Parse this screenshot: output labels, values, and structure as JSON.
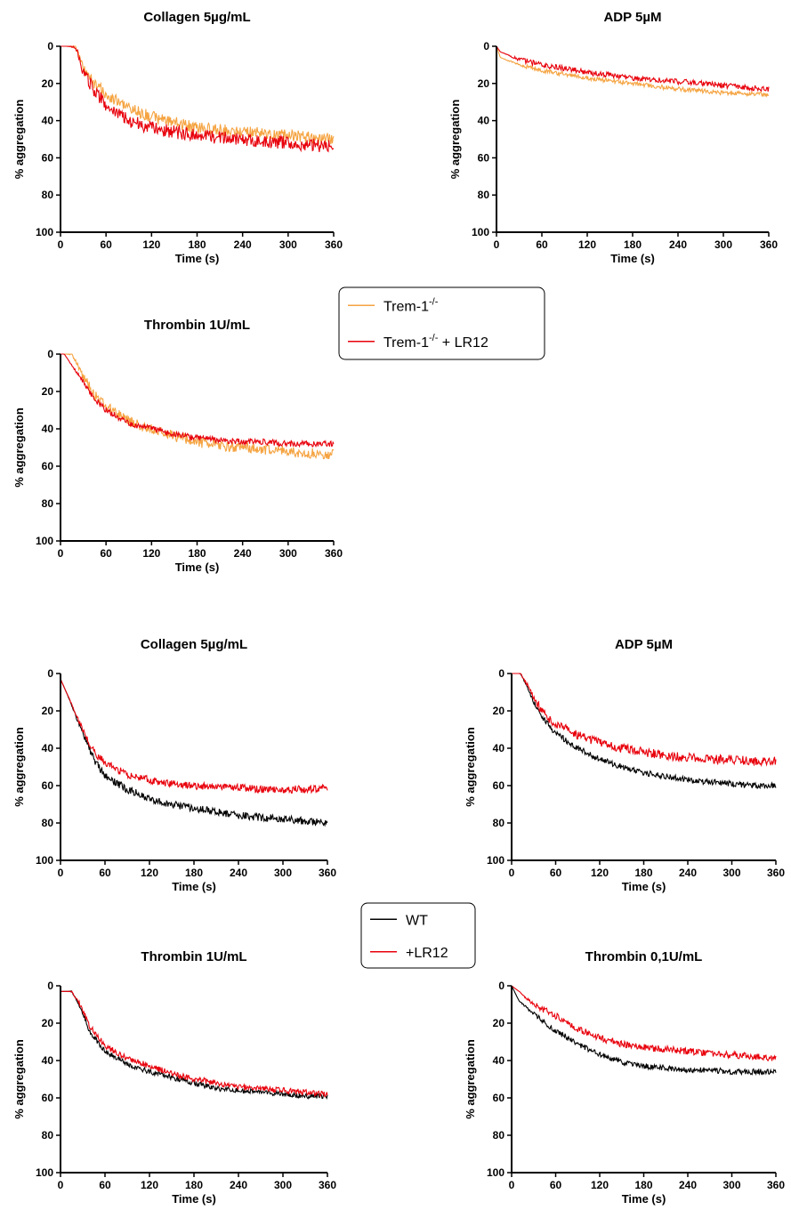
{
  "figure": {
    "legends": [
      {
        "entries": [
          {
            "label": "Trem-1",
            "sup": "-/-",
            "suffix": "",
            "color": "#f5a340"
          },
          {
            "label": "Trem-1",
            "sup": "-/-",
            "suffix": " + LR12",
            "color": "#e8000b"
          }
        ]
      },
      {
        "entries": [
          {
            "label": "WT",
            "sup": "",
            "suffix": "",
            "color": "#000000"
          },
          {
            "label": "+LR12",
            "sup": "",
            "suffix": "",
            "color": "#e8000b"
          }
        ]
      }
    ]
  },
  "chart_data": [
    {
      "type": "line",
      "title": "Collagen 5µg/mL",
      "xlabel": "Time (s)",
      "ylabel": "% aggregation",
      "xlim": [
        0,
        360
      ],
      "ylim": [
        0,
        100
      ],
      "y_inverted": true,
      "xticks": [
        0,
        60,
        120,
        180,
        240,
        300,
        360
      ],
      "yticks": [
        0,
        20,
        40,
        60,
        80,
        100
      ],
      "series": [
        {
          "name": "Trem-1-/-",
          "color": "#f5a340",
          "x": [
            0,
            20,
            30,
            45,
            60,
            90,
            120,
            150,
            180,
            210,
            240,
            270,
            300,
            330,
            360
          ],
          "y": [
            0,
            0,
            12,
            20,
            26,
            33,
            38,
            41,
            44,
            45,
            46,
            47,
            48,
            49,
            50
          ]
        },
        {
          "name": "Trem-1-/- + LR12",
          "color": "#e8000b",
          "x": [
            0,
            20,
            30,
            45,
            60,
            90,
            120,
            150,
            180,
            210,
            240,
            270,
            300,
            330,
            360
          ],
          "y": [
            0,
            0,
            14,
            24,
            32,
            40,
            44,
            46,
            48,
            49,
            50,
            51,
            52,
            53,
            54
          ]
        }
      ]
    },
    {
      "type": "line",
      "title": "ADP 5µM",
      "xlabel": "Time (s)",
      "ylabel": "% aggregation",
      "xlim": [
        0,
        360
      ],
      "ylim": [
        0,
        100
      ],
      "y_inverted": true,
      "xticks": [
        0,
        60,
        120,
        180,
        240,
        300,
        360
      ],
      "yticks": [
        0,
        20,
        40,
        60,
        80,
        100
      ],
      "series": [
        {
          "name": "Trem-1-/-",
          "color": "#f5a340",
          "x": [
            0,
            5,
            30,
            60,
            90,
            120,
            180,
            240,
            300,
            360
          ],
          "y": [
            0,
            6,
            10,
            13,
            15,
            17,
            20,
            23,
            25,
            26
          ]
        },
        {
          "name": "Trem-1-/- + LR12",
          "color": "#e8000b",
          "x": [
            0,
            5,
            30,
            60,
            90,
            120,
            180,
            240,
            300,
            360
          ],
          "y": [
            0,
            3,
            7,
            10,
            12,
            14,
            17,
            19,
            21,
            23
          ]
        }
      ]
    },
    {
      "type": "line",
      "title": "Thrombin 1U/mL",
      "xlabel": "Time (s)",
      "ylabel": "% aggregation",
      "xlim": [
        0,
        360
      ],
      "ylim": [
        0,
        100
      ],
      "y_inverted": true,
      "xticks": [
        0,
        60,
        120,
        180,
        240,
        300,
        360
      ],
      "yticks": [
        0,
        20,
        40,
        60,
        80,
        100
      ],
      "series": [
        {
          "name": "Trem-1-/-",
          "color": "#f5a340",
          "x": [
            0,
            15,
            30,
            45,
            60,
            90,
            120,
            150,
            180,
            210,
            240,
            270,
            300,
            330,
            360
          ],
          "y": [
            0,
            0,
            12,
            22,
            28,
            36,
            40,
            44,
            47,
            49,
            50,
            51,
            52,
            53,
            54
          ]
        },
        {
          "name": "Trem-1-/- + LR12",
          "color": "#e8000b",
          "x": [
            0,
            5,
            30,
            45,
            60,
            90,
            120,
            150,
            180,
            210,
            240,
            270,
            300,
            330,
            360
          ],
          "y": [
            0,
            0,
            15,
            24,
            30,
            37,
            40,
            43,
            45,
            46,
            47,
            47,
            48,
            48,
            48
          ]
        }
      ]
    },
    {
      "type": "line",
      "title": "Collagen 5µg/mL",
      "xlabel": "Time (s)",
      "ylabel": "% aggregation",
      "xlim": [
        0,
        360
      ],
      "ylim": [
        0,
        100
      ],
      "y_inverted": true,
      "xticks": [
        0,
        60,
        120,
        180,
        240,
        300,
        360
      ],
      "yticks": [
        0,
        20,
        40,
        60,
        80,
        100
      ],
      "series": [
        {
          "name": "WT",
          "color": "#000000",
          "x": [
            0,
            10,
            30,
            45,
            60,
            90,
            120,
            150,
            180,
            210,
            240,
            270,
            300,
            330,
            360
          ],
          "y": [
            3,
            12,
            32,
            46,
            55,
            62,
            67,
            70,
            72,
            74,
            76,
            77,
            78,
            79,
            80
          ]
        },
        {
          "name": "+LR12",
          "color": "#e8000b",
          "x": [
            0,
            10,
            30,
            45,
            60,
            90,
            120,
            150,
            180,
            210,
            240,
            270,
            300,
            330,
            360
          ],
          "y": [
            3,
            12,
            30,
            42,
            48,
            54,
            57,
            59,
            60,
            61,
            61,
            62,
            62,
            62,
            61
          ]
        }
      ]
    },
    {
      "type": "line",
      "title": "ADP 5µM",
      "xlabel": "Time (s)",
      "ylabel": "% aggregation",
      "xlim": [
        0,
        360
      ],
      "ylim": [
        0,
        100
      ],
      "y_inverted": true,
      "xticks": [
        0,
        60,
        120,
        180,
        240,
        300,
        360
      ],
      "yticks": [
        0,
        20,
        40,
        60,
        80,
        100
      ],
      "series": [
        {
          "name": "WT",
          "color": "#000000",
          "x": [
            0,
            12,
            20,
            30,
            45,
            60,
            90,
            120,
            150,
            180,
            210,
            240,
            270,
            300,
            330,
            360
          ],
          "y": [
            0,
            0,
            6,
            15,
            25,
            32,
            40,
            46,
            50,
            53,
            55,
            57,
            58,
            59,
            60,
            60
          ]
        },
        {
          "name": "+LR12",
          "color": "#e8000b",
          "x": [
            0,
            12,
            20,
            30,
            45,
            60,
            90,
            120,
            150,
            180,
            210,
            240,
            270,
            300,
            330,
            360
          ],
          "y": [
            0,
            0,
            5,
            13,
            22,
            27,
            33,
            37,
            40,
            42,
            44,
            45,
            46,
            46,
            47,
            47
          ]
        }
      ]
    },
    {
      "type": "line",
      "title": "Thrombin 1U/mL",
      "xlabel": "Time (s)",
      "ylabel": "% aggregation",
      "xlim": [
        0,
        360
      ],
      "ylim": [
        0,
        100
      ],
      "y_inverted": true,
      "xticks": [
        0,
        60,
        120,
        180,
        240,
        300,
        360
      ],
      "yticks": [
        0,
        20,
        40,
        60,
        80,
        100
      ],
      "series": [
        {
          "name": "WT",
          "color": "#000000",
          "x": [
            0,
            15,
            25,
            40,
            60,
            90,
            120,
            150,
            180,
            210,
            240,
            270,
            300,
            330,
            360
          ],
          "y": [
            3,
            3,
            10,
            25,
            35,
            42,
            46,
            49,
            52,
            55,
            56,
            57,
            58,
            59,
            59
          ]
        },
        {
          "name": "+LR12",
          "color": "#e8000b",
          "x": [
            0,
            15,
            25,
            40,
            60,
            90,
            120,
            150,
            180,
            210,
            240,
            270,
            300,
            330,
            360
          ],
          "y": [
            3,
            3,
            9,
            22,
            32,
            39,
            43,
            47,
            50,
            52,
            54,
            55,
            56,
            57,
            58
          ]
        }
      ]
    },
    {
      "type": "line",
      "title": "Thrombin 0,1U/mL",
      "xlabel": "Time (s)",
      "ylabel": "% aggregation",
      "xlim": [
        0,
        360
      ],
      "ylim": [
        0,
        100
      ],
      "y_inverted": true,
      "xticks": [
        0,
        60,
        120,
        180,
        240,
        300,
        360
      ],
      "yticks": [
        0,
        20,
        40,
        60,
        80,
        100
      ],
      "series": [
        {
          "name": "WT",
          "color": "#000000",
          "x": [
            0,
            10,
            30,
            60,
            90,
            120,
            150,
            180,
            210,
            240,
            270,
            300,
            330,
            360
          ],
          "y": [
            0,
            8,
            15,
            24,
            31,
            37,
            41,
            43,
            44,
            45,
            45,
            46,
            46,
            46
          ]
        },
        {
          "name": "+LR12",
          "color": "#e8000b",
          "x": [
            0,
            10,
            30,
            60,
            90,
            120,
            150,
            180,
            210,
            240,
            270,
            300,
            330,
            360
          ],
          "y": [
            0,
            3,
            10,
            16,
            23,
            28,
            31,
            33,
            34,
            35,
            36,
            37,
            38,
            39
          ]
        }
      ]
    }
  ]
}
